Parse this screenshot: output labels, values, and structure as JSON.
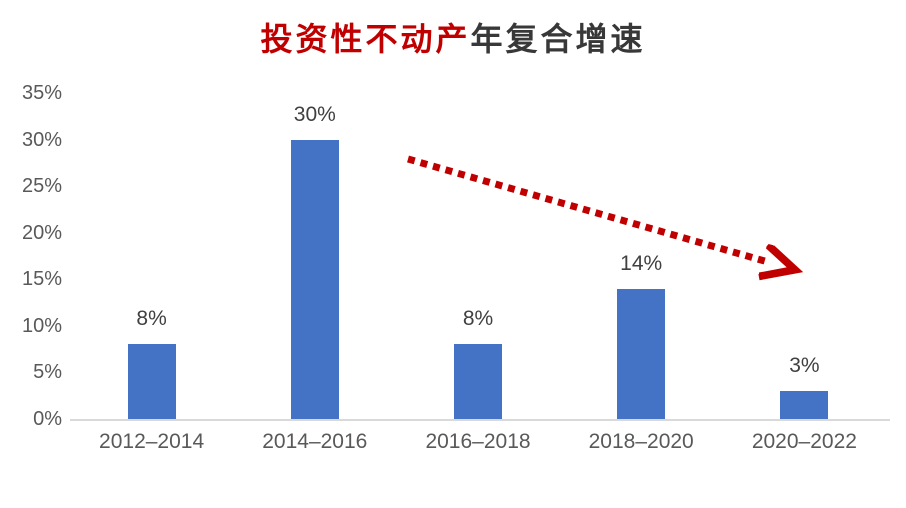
{
  "title": {
    "red_text": "投资性不动产",
    "dark_text": "年复合增速"
  },
  "chart_data": {
    "type": "bar",
    "title": "投资性不动产年复合增速",
    "categories": [
      "2012–2014",
      "2014–2016",
      "2016–2018",
      "2018–2020",
      "2020–2022"
    ],
    "values": [
      8,
      30,
      8,
      14,
      3
    ],
    "data_labels": [
      "8%",
      "30%",
      "8%",
      "14%",
      "3%"
    ],
    "ytick_labels": [
      "35%",
      "30%",
      "25%",
      "20%",
      "15%",
      "10%",
      "5%",
      "0%"
    ],
    "ylim": [
      0,
      35
    ],
    "grid": false,
    "legend": "none",
    "xlabel": "",
    "ylabel": "",
    "colors": {
      "bar": "#4472c4",
      "axis_line": "#d9d9d9",
      "tick_label": "#595959",
      "data_label": "#404040",
      "title_red": "#c00000",
      "title_dark": "#383838",
      "arrow": "#c00000"
    },
    "annotation": {
      "type": "arrow",
      "style": "dotted",
      "color": "#c00000",
      "direction": "down-right"
    }
  }
}
